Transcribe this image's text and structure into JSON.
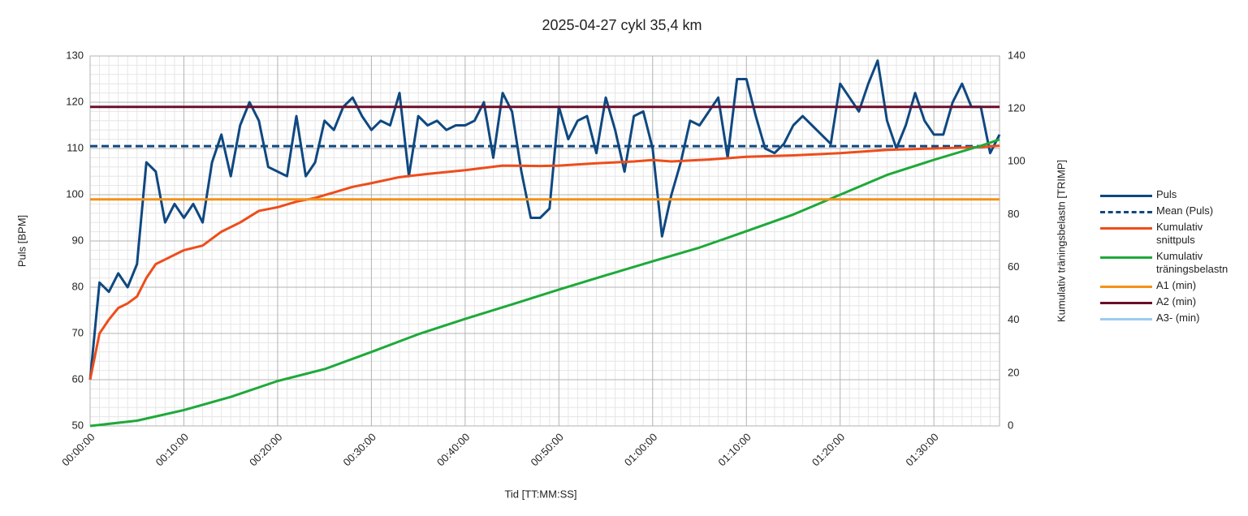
{
  "chart_data": {
    "type": "line",
    "title": "2025-04-27 cykl 35,4 km",
    "xlabel": "Tid [TT:MM:SS]",
    "ylabel": "Puls [BPM]",
    "y2label": "Kumulativ träningsbelastn [TRIMP]",
    "xlim": [
      0,
      97
    ],
    "xticks": [
      {
        "value": 0,
        "label": "00:00:00"
      },
      {
        "value": 10,
        "label": "00:10:00"
      },
      {
        "value": 20,
        "label": "00:20:00"
      },
      {
        "value": 30,
        "label": "00:30:00"
      },
      {
        "value": 40,
        "label": "00:40:00"
      },
      {
        "value": 50,
        "label": "00:50:00"
      },
      {
        "value": 60,
        "label": "01:00:00"
      },
      {
        "value": 70,
        "label": "01:10:00"
      },
      {
        "value": 80,
        "label": "01:20:00"
      },
      {
        "value": 90,
        "label": "01:30:00"
      }
    ],
    "ylim": [
      50,
      130
    ],
    "yticks": [
      50,
      60,
      70,
      80,
      90,
      100,
      110,
      120,
      130
    ],
    "y2lim": [
      0,
      140
    ],
    "y2ticks": [
      0,
      20,
      40,
      60,
      80,
      100,
      120,
      140
    ],
    "grid": true,
    "minor_grid": true,
    "legend": "right",
    "x": [
      0,
      1,
      2,
      3,
      4,
      5,
      6,
      7,
      8,
      9,
      10,
      11,
      12,
      13,
      14,
      15,
      16,
      17,
      18,
      19,
      20,
      21,
      22,
      23,
      24,
      25,
      26,
      27,
      28,
      29,
      30,
      31,
      32,
      33,
      34,
      35,
      36,
      37,
      38,
      39,
      40,
      41,
      42,
      43,
      44,
      45,
      46,
      47,
      48,
      49,
      50,
      51,
      52,
      53,
      54,
      55,
      56,
      57,
      58,
      59,
      60,
      61,
      62,
      63,
      64,
      65,
      66,
      67,
      68,
      69,
      70,
      71,
      72,
      73,
      74,
      75,
      76,
      77,
      78,
      79,
      80,
      81,
      82,
      83,
      84,
      85,
      86,
      87,
      88,
      89,
      90,
      91,
      92,
      93,
      94,
      95,
      96,
      97
    ],
    "series": [
      {
        "name": "Puls",
        "color": "#0f4880",
        "values": [
          60,
          81,
          79,
          83,
          80,
          85,
          107,
          105,
          94,
          98,
          95,
          98,
          94,
          107,
          113,
          104,
          115,
          120,
          116,
          106,
          105,
          104,
          117,
          104,
          107,
          116,
          114,
          119,
          121,
          117,
          114,
          116,
          115,
          122,
          104,
          117,
          115,
          116,
          114,
          115,
          115,
          116,
          120,
          108,
          122,
          118,
          105,
          95,
          95,
          97,
          119,
          112,
          116,
          117,
          109,
          121,
          114,
          105,
          117,
          118,
          110,
          91,
          100,
          107,
          116,
          115,
          118,
          121,
          108,
          125,
          125,
          117,
          110,
          109,
          111,
          115,
          117,
          115,
          113,
          111,
          124,
          121,
          118,
          124,
          129,
          116,
          110,
          115,
          122,
          116,
          113,
          113,
          120,
          124,
          119,
          119,
          109,
          113
        ]
      },
      {
        "name": "Mean (Puls)",
        "color": "#0f4880",
        "dash": true,
        "value": 110.5
      },
      {
        "name": "Kumulativ snittpuls",
        "color": "#ee4d1b",
        "x": [
          0,
          1,
          2,
          3,
          4,
          5,
          6,
          7,
          8,
          10,
          12,
          14,
          16,
          18,
          20,
          22,
          24,
          26,
          28,
          30,
          33,
          36,
          40,
          44,
          48,
          50,
          54,
          58,
          60,
          62,
          66,
          70,
          75,
          80,
          85,
          90,
          95,
          97
        ],
        "values": [
          60,
          70,
          73,
          75.5,
          76.5,
          78,
          82,
          85,
          86,
          88,
          89,
          92,
          94,
          96.5,
          97.3,
          98.5,
          99.3,
          100.5,
          101.7,
          102.5,
          103.8,
          104.5,
          105.3,
          106.3,
          106.2,
          106.3,
          106.8,
          107.2,
          107.5,
          107.2,
          107.6,
          108.2,
          108.5,
          109,
          109.7,
          110,
          110.3,
          110.6
        ]
      },
      {
        "name": "Kumulativ träningsbelastn",
        "color": "#1ea93a",
        "axis": "y2",
        "x": [
          0,
          5,
          10,
          15,
          20,
          25,
          30,
          35,
          40,
          45,
          50,
          55,
          60,
          65,
          70,
          75,
          80,
          85,
          90,
          95,
          97
        ],
        "values": [
          0,
          2,
          6,
          11,
          17,
          21.5,
          28,
          34.7,
          40.5,
          46,
          51.6,
          57,
          62.3,
          67.5,
          73.7,
          80,
          87.5,
          95,
          100.7,
          106,
          108.4
        ]
      },
      {
        "name": "A1 (min)",
        "color": "#f39219",
        "value": 99
      },
      {
        "name": "A2 (min)",
        "color": "#6b0e2a",
        "value": 119
      },
      {
        "name": "A3- (min)",
        "color": "#99ccee",
        "value": null
      }
    ]
  }
}
